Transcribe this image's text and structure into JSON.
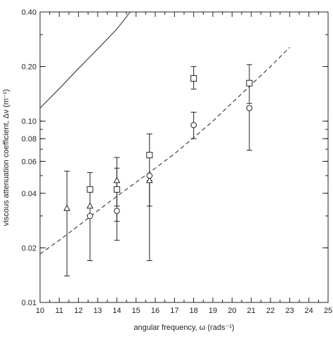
{
  "chart_data": {
    "type": "scatter",
    "xlabel": "angular frequency, ω (rads⁻¹)",
    "ylabel": "viscous attenuation coefficient, Δv (m⁻¹)",
    "xlim": [
      10,
      25
    ],
    "ylim": [
      0.01,
      0.4
    ],
    "yscale": "log",
    "grid": false,
    "x_ticks": [
      "10",
      "11",
      "12",
      "13",
      "14",
      "15",
      "16",
      "17",
      "18",
      "19",
      "20",
      "21",
      "22",
      "23",
      "24",
      "25"
    ],
    "y_ticks": [
      {
        "value": 0.01,
        "label": "0.01"
      },
      {
        "value": 0.02,
        "label": "0.02"
      },
      {
        "value": 0.04,
        "label": "0.04"
      },
      {
        "value": 0.06,
        "label": "0.06"
      },
      {
        "value": 0.08,
        "label": "0.08"
      },
      {
        "value": 0.1,
        "label": "0.10"
      },
      {
        "value": 0.2,
        "label": "0.20"
      },
      {
        "value": 0.4,
        "label": "0.40"
      }
    ],
    "series": [
      {
        "marker": "triangle",
        "points": [
          {
            "x": 11.4,
            "y": 0.033,
            "lo": 0.014,
            "hi": 0.053
          },
          {
            "x": 12.6,
            "y": 0.034,
            "lo": 0.034,
            "hi": 0.034
          },
          {
            "x": 14.0,
            "y": 0.047,
            "lo": 0.034,
            "hi": 0.063
          },
          {
            "x": 15.7,
            "y": 0.047,
            "lo": 0.017,
            "hi": 0.047
          }
        ]
      },
      {
        "marker": "square",
        "points": [
          {
            "x": 12.6,
            "y": 0.042,
            "lo": 0.017,
            "hi": 0.052
          },
          {
            "x": 14.0,
            "y": 0.042,
            "lo": 0.028,
            "hi": 0.055
          },
          {
            "x": 15.7,
            "y": 0.065,
            "lo": 0.034,
            "hi": 0.085
          },
          {
            "x": 18.0,
            "y": 0.172,
            "lo": 0.15,
            "hi": 0.2
          },
          {
            "x": 20.9,
            "y": 0.162,
            "lo": 0.125,
            "hi": 0.205
          }
        ]
      },
      {
        "marker": "circle",
        "points": [
          {
            "x": 12.6,
            "y": 0.03,
            "lo": 0.03,
            "hi": 0.03
          },
          {
            "x": 14.0,
            "y": 0.032,
            "lo": 0.022,
            "hi": 0.032
          },
          {
            "x": 15.7,
            "y": 0.05,
            "lo": 0.05,
            "hi": 0.05
          },
          {
            "x": 18.0,
            "y": 0.095,
            "lo": 0.08,
            "hi": 0.112
          },
          {
            "x": 20.9,
            "y": 0.118,
            "lo": 0.069,
            "hi": 0.118
          }
        ]
      }
    ],
    "curves": [
      {
        "style": "solid",
        "x": [
          10,
          11,
          12,
          13,
          14,
          14.7
        ],
        "y": [
          0.118,
          0.151,
          0.195,
          0.25,
          0.322,
          0.4
        ]
      },
      {
        "style": "dashed",
        "x": [
          10,
          11,
          12,
          13,
          14,
          15,
          16,
          17,
          18,
          19,
          20,
          21,
          22,
          23
        ],
        "y": [
          0.0185,
          0.022,
          0.0265,
          0.032,
          0.0385,
          0.046,
          0.055,
          0.066,
          0.081,
          0.1,
          0.126,
          0.159,
          0.2,
          0.255
        ]
      }
    ]
  }
}
